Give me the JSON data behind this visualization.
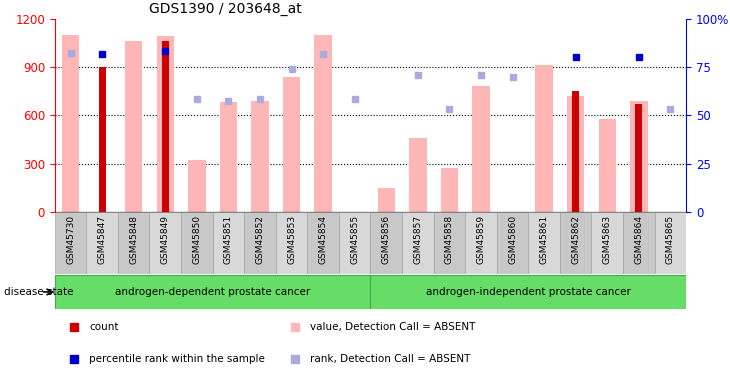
{
  "title": "GDS1390 / 203648_at",
  "samples": [
    "GSM45730",
    "GSM45847",
    "GSM45848",
    "GSM45849",
    "GSM45850",
    "GSM45851",
    "GSM45852",
    "GSM45853",
    "GSM45854",
    "GSM45855",
    "GSM45856",
    "GSM45857",
    "GSM45858",
    "GSM45859",
    "GSM45860",
    "GSM45861",
    "GSM45862",
    "GSM45863",
    "GSM45864",
    "GSM45865"
  ],
  "pink_values": [
    1100,
    0,
    1060,
    1090,
    320,
    680,
    690,
    840,
    1100,
    0,
    150,
    460,
    270,
    780,
    0,
    910,
    720,
    580,
    690,
    0
  ],
  "dark_red_values": [
    0,
    900,
    0,
    1060,
    0,
    0,
    0,
    0,
    0,
    0,
    0,
    0,
    0,
    0,
    0,
    0,
    750,
    0,
    670,
    0
  ],
  "blue_sq_left_axis": [
    null,
    980,
    null,
    1000,
    null,
    null,
    null,
    null,
    null,
    null,
    null,
    null,
    null,
    null,
    null,
    null,
    960,
    null,
    960,
    null
  ],
  "light_blue_left_axis": [
    990,
    null,
    null,
    null,
    700,
    690,
    700,
    890,
    980,
    700,
    null,
    850,
    640,
    850,
    840,
    null,
    null,
    null,
    null,
    640
  ],
  "ylim_left": [
    0,
    1200
  ],
  "ylim_right": [
    0,
    100
  ],
  "yticks_left": [
    0,
    300,
    600,
    900,
    1200
  ],
  "yticks_right_labels": [
    "0",
    "25",
    "50",
    "75",
    "100%"
  ],
  "yticks_right_vals": [
    0,
    25,
    50,
    75,
    100
  ],
  "group1_label": "androgen-dependent prostate cancer",
  "group2_label": "androgen-independent prostate cancer",
  "group1_count": 10,
  "group2_count": 10,
  "disease_state_label": "disease state",
  "legend": [
    {
      "color": "#CC0000",
      "label": "count"
    },
    {
      "color": "#0000CC",
      "label": "percentile rank within the sample"
    },
    {
      "color": "#FFB6B6",
      "label": "value, Detection Call = ABSENT"
    },
    {
      "color": "#AAAADD",
      "label": "rank, Detection Call = ABSENT"
    }
  ],
  "pink_color": "#FFB6B6",
  "dark_red_color": "#CC0000",
  "blue_sq_color": "#0000CC",
  "light_blue_color": "#AAAADD",
  "green_color": "#66DD66",
  "group_border_color": "#44AA44"
}
